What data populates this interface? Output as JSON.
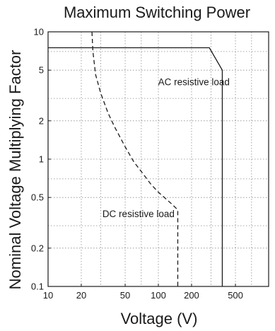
{
  "chart_data": {
    "type": "line",
    "title": "Maximum Switching Power",
    "xlabel": "Voltage (V)",
    "ylabel": "Nominal Voltage Multiplying Factor",
    "x_scale": "log",
    "y_scale": "log",
    "xlim": [
      10,
      1000
    ],
    "ylim": [
      0.1,
      10
    ],
    "grid": true,
    "x_ticks": [
      10,
      20,
      50,
      100,
      200,
      500
    ],
    "x_tick_labels": [
      "10",
      "20",
      "50",
      "100",
      "200",
      "500"
    ],
    "x_grid": [
      10,
      20,
      30,
      50,
      70,
      100,
      200,
      300,
      500,
      700
    ],
    "y_ticks": [
      0.1,
      0.2,
      0.5,
      1,
      2,
      5,
      10
    ],
    "y_tick_labels": [
      "0.1",
      "0.2",
      "0.5",
      "1",
      "2",
      "5",
      "10"
    ],
    "y_grid": [
      0.1,
      0.2,
      0.3,
      0.5,
      0.7,
      1,
      2,
      3,
      5,
      7,
      10
    ],
    "series": [
      {
        "style": "solid",
        "x": [
          10,
          290,
          380,
          380
        ],
        "y": [
          7.5,
          7.5,
          5,
          0.1
        ]
      },
      {
        "style": "dashed",
        "x": [
          25,
          25.5,
          27,
          30,
          35,
          40,
          50,
          60,
          70,
          85,
          100,
          130,
          150,
          150
        ],
        "y": [
          10,
          7,
          4.6,
          3.3,
          2.3,
          1.8,
          1.25,
          0.95,
          0.8,
          0.64,
          0.55,
          0.45,
          0.4,
          0.1
        ]
      }
    ],
    "annotations": [
      {
        "text": "AC resistive load",
        "x": 210,
        "y": 3.8
      },
      {
        "text": "DC resistive load",
        "x": 66,
        "y": 0.35
      }
    ]
  }
}
